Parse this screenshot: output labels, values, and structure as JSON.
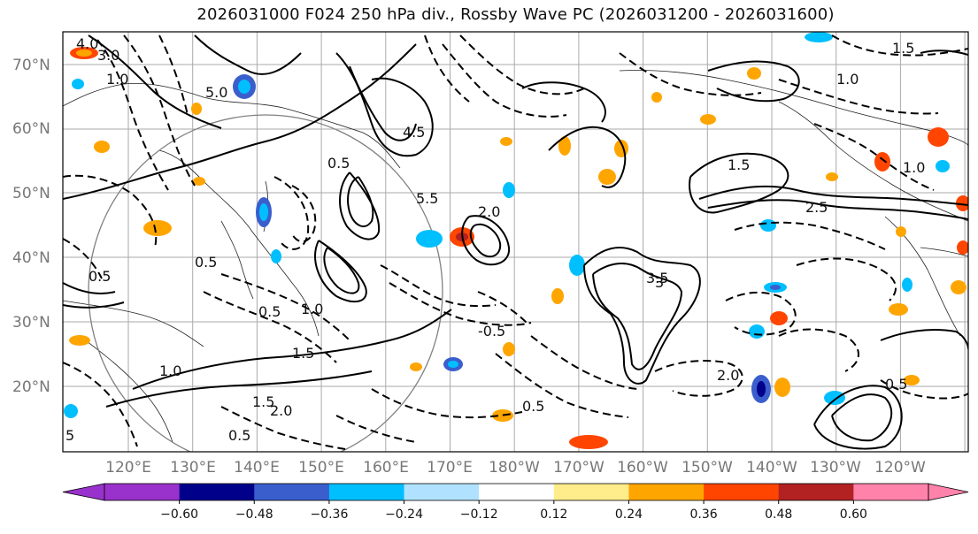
{
  "title": "2026031000 F024 250 hPa div., Rossby Wave PC (2026031200 - 2026031600)",
  "lat_labels": [
    "70°N",
    "60°N",
    "50°N",
    "40°N",
    "30°N",
    "20°N"
  ],
  "lon_labels": [
    "120°E",
    "130°E",
    "140°E",
    "150°E",
    "160°E",
    "170°E",
    "180°W",
    "170°W",
    "160°W",
    "150°W",
    "140°W",
    "130°W",
    "120°W"
  ],
  "colorbar": {
    "ticks": [
      "−0.60",
      "−0.48",
      "−0.36",
      "−0.24",
      "−0.12",
      "0.12",
      "0.24",
      "0.36",
      "0.48",
      "0.60"
    ],
    "tick_values": [
      -0.6,
      -0.48,
      -0.36,
      -0.24,
      -0.12,
      0.12,
      0.24,
      0.36,
      0.48,
      0.6
    ],
    "colors": [
      "#9932cc",
      "#00008b",
      "#3a5fcd",
      "#00bfff",
      "#b0e2ff",
      "#ffffff",
      "#ffec8b",
      "#ffa500",
      "#ff4500",
      "#b22222",
      "#ff82ab"
    ]
  },
  "contour_labels": [
    "4.0",
    "3.0",
    "1.0",
    "5.0",
    "0.5",
    "1.5",
    "2.0",
    "2.5",
    "3.5",
    "4.5",
    "5.5",
    "1.0",
    "0.5",
    "-0.5",
    "1.5",
    "0.5",
    "1.0",
    "0.5",
    "2.0",
    "1.5",
    "0.5",
    "2.0",
    "0.5",
    "1.0",
    "1.5",
    "1.0",
    "3",
    "0.5",
    "5"
  ],
  "map_colors": {
    "contour": "#000000",
    "grid": "#999999",
    "frame": "#000000",
    "great_circle": "#808080"
  }
}
